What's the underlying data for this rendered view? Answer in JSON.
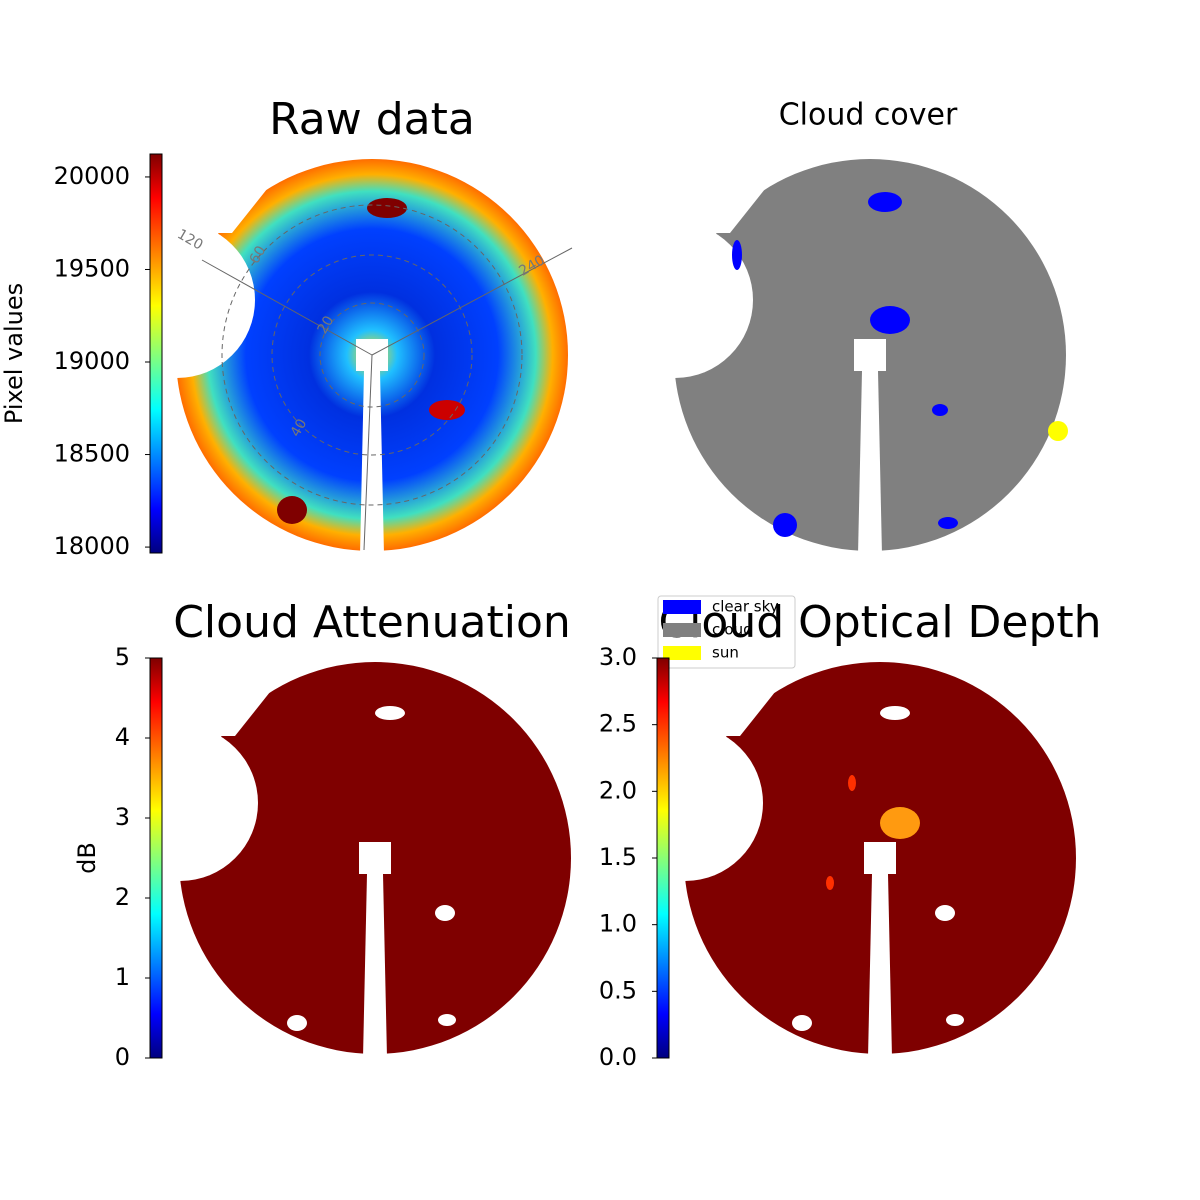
{
  "chart_data": [
    {
      "type": "image",
      "title": "Raw data",
      "ylabel": "Pixel values",
      "ylim": [
        17968,
        20124
      ],
      "yticks": [
        18000,
        18500,
        19000,
        19500,
        20000
      ],
      "annotations": [
        "120",
        "240",
        "60",
        "40",
        "20"
      ]
    },
    {
      "type": "image",
      "title": "Cloud cover",
      "legend": [
        {
          "name": "clear sky",
          "color": "#0000ff"
        },
        {
          "name": "cloud",
          "color": "#808080"
        },
        {
          "name": "sun",
          "color": "#ffff00"
        }
      ]
    },
    {
      "type": "image",
      "title": "Cloud Attenuation",
      "ylabel": "dB",
      "ylim": [
        0,
        5
      ],
      "yticks": [
        0,
        1,
        2,
        3,
        4,
        5
      ]
    },
    {
      "type": "image",
      "title": "Cloud Optical Depth",
      "ylim": [
        0,
        3
      ],
      "yticks": [
        {
          "value": 0,
          "label": "0.0"
        },
        {
          "value": 0.5,
          "label": "0.5"
        },
        {
          "value": 1,
          "label": "1.0"
        },
        {
          "value": 1.5,
          "label": "1.5"
        },
        {
          "value": 2,
          "label": "2.0"
        },
        {
          "value": 2.5,
          "label": "2.5"
        },
        {
          "value": 3,
          "label": "3.0"
        }
      ]
    }
  ]
}
